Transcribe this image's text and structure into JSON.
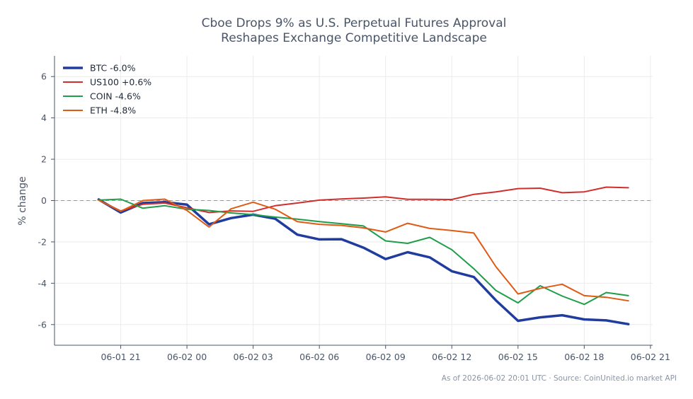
{
  "chart_data": {
    "type": "line",
    "title_lines": [
      "Cboe Drops 9% as U.S. Perpetual Futures Approval",
      "Reshapes Exchange Competitive Landscape"
    ],
    "xlabel": "",
    "ylabel": "% change",
    "x_ticks": [
      "06-01 21",
      "06-02 00",
      "06-02 03",
      "06-02 06",
      "06-02 09",
      "06-02 12",
      "06-02 15",
      "06-02 18",
      "06-02 21"
    ],
    "x_tick_hours": [
      21,
      24,
      27,
      30,
      33,
      36,
      39,
      42,
      45
    ],
    "xlim_hours": [
      18.0,
      45.1
    ],
    "y_ticks": [
      6,
      4,
      2,
      0,
      -2,
      -4,
      -6
    ],
    "ylim": [
      -7,
      7
    ],
    "grid": true,
    "zero_line": true,
    "legend_position": "top-left",
    "x_hours": [
      20,
      21,
      22,
      23,
      24,
      25,
      26,
      27,
      28,
      29,
      30,
      31,
      32,
      33,
      34,
      35,
      36,
      37,
      38,
      39,
      40,
      41,
      42,
      43,
      44
    ],
    "series": [
      {
        "name": "BTC -6.0%",
        "color": "#1f3c9e",
        "width": 3.5,
        "values": [
          0.05,
          -0.58,
          -0.12,
          -0.08,
          -0.2,
          -1.15,
          -0.85,
          -0.68,
          -0.88,
          -1.65,
          -1.88,
          -1.87,
          -2.28,
          -2.83,
          -2.5,
          -2.75,
          -3.42,
          -3.7,
          -4.83,
          -5.82,
          -5.65,
          -5.55,
          -5.75,
          -5.8,
          -5.98
        ]
      },
      {
        "name": "US100 +0.6%",
        "color": "#d12e2e",
        "width": 2,
        "values": [
          0.02,
          -0.5,
          -0.18,
          -0.12,
          -0.35,
          -0.58,
          -0.5,
          -0.52,
          -0.25,
          -0.12,
          0.02,
          0.08,
          0.12,
          0.18,
          0.06,
          0.06,
          0.05,
          0.3,
          0.42,
          0.58,
          0.6,
          0.38,
          0.42,
          0.65,
          0.62
        ]
      },
      {
        "name": "COIN -4.6%",
        "color": "#1f9e4a",
        "width": 2,
        "values": [
          0.02,
          0.07,
          -0.37,
          -0.25,
          -0.42,
          -0.48,
          -0.6,
          -0.68,
          -0.8,
          -0.9,
          -1.02,
          -1.12,
          -1.23,
          -1.95,
          -2.07,
          -1.78,
          -2.38,
          -3.3,
          -4.35,
          -4.95,
          -4.12,
          -4.62,
          -5.02,
          -4.45,
          -4.6
        ]
      },
      {
        "name": "ETH -4.8%",
        "color": "#e05a14",
        "width": 2,
        "values": [
          0.02,
          -0.52,
          0.0,
          0.07,
          -0.48,
          -1.28,
          -0.4,
          -0.08,
          -0.42,
          -1.02,
          -1.15,
          -1.2,
          -1.32,
          -1.52,
          -1.1,
          -1.35,
          -1.45,
          -1.57,
          -3.2,
          -4.52,
          -4.25,
          -4.05,
          -4.6,
          -4.68,
          -4.85
        ]
      }
    ]
  },
  "footer": "As of 2026-06-02 20:01 UTC · Source: CoinUnited.io market API"
}
